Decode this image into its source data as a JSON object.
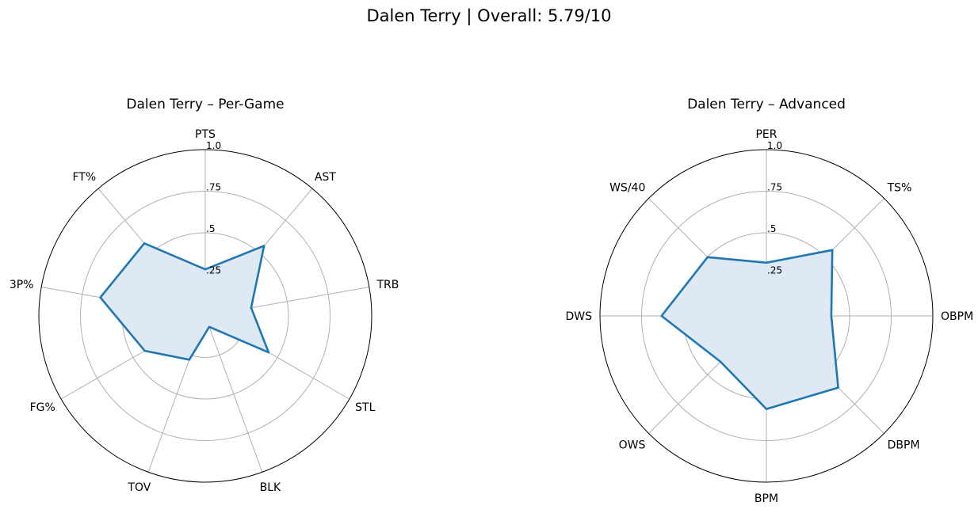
{
  "figure": {
    "title": "Dalen Terry | Overall: 5.79/10"
  },
  "chart_data": [
    {
      "type": "radar",
      "title": "Dalen Terry – Per-Game",
      "categories": [
        "PTS",
        "AST",
        "TRB",
        "STL",
        "BLK",
        "TOV",
        "FG%",
        "3P%",
        "FT%"
      ],
      "values": [
        0.28,
        0.55,
        0.28,
        0.44,
        0.07,
        0.28,
        0.42,
        0.64,
        0.57
      ],
      "rlim": [
        0,
        1
      ],
      "rticks": [
        0.25,
        0.5,
        0.75,
        1.0
      ],
      "rtick_labels": [
        ".25",
        ".5",
        ".75",
        "1.0"
      ],
      "grid": true,
      "line_color": "#1f77b4",
      "fill_color": "#dce8f3"
    },
    {
      "type": "radar",
      "title": "Dalen Terry – Advanced",
      "categories": [
        "PER",
        "TS%",
        "OBPM",
        "DBPM",
        "BPM",
        "OWS",
        "DWS",
        "WS/40"
      ],
      "values": [
        0.32,
        0.56,
        0.39,
        0.61,
        0.56,
        0.39,
        0.63,
        0.5
      ],
      "rlim": [
        0,
        1
      ],
      "rticks": [
        0.25,
        0.5,
        0.75,
        1.0
      ],
      "rtick_labels": [
        ".25",
        ".5",
        ".75",
        "1.0"
      ],
      "grid": true,
      "line_color": "#1f77b4",
      "fill_color": "#dce8f3"
    }
  ]
}
